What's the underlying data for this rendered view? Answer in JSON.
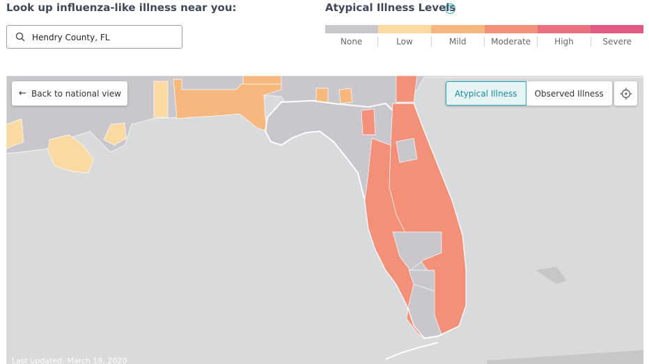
{
  "lookup": {
    "title": "Look up influenza-like illness near you:",
    "search_value": "Hendry County, FL"
  },
  "legend": {
    "title": "Atypical Illness Levels",
    "help_icon": "question-circle-icon",
    "levels": [
      {
        "label": "None",
        "color": "#c9c6cc"
      },
      {
        "label": "Low",
        "color": "#fad9a3"
      },
      {
        "label": "Mild",
        "color": "#f7b87f"
      },
      {
        "label": "Moderate",
        "color": "#f29079"
      },
      {
        "label": "High",
        "color": "#ea6f80"
      },
      {
        "label": "Severe",
        "color": "#e05a83"
      }
    ]
  },
  "map": {
    "back_label": "Back to national view",
    "back_icon": "arrow-left-icon",
    "toggle": {
      "atypical_label": "Atypical Illness",
      "observed_label": "Observed Illness",
      "selected": "Atypical Illness"
    },
    "locate_icon": "crosshair-icon",
    "updated_label": "Last updated:",
    "updated_date": "March 19, 2020",
    "water_color": "#d9dadc"
  }
}
